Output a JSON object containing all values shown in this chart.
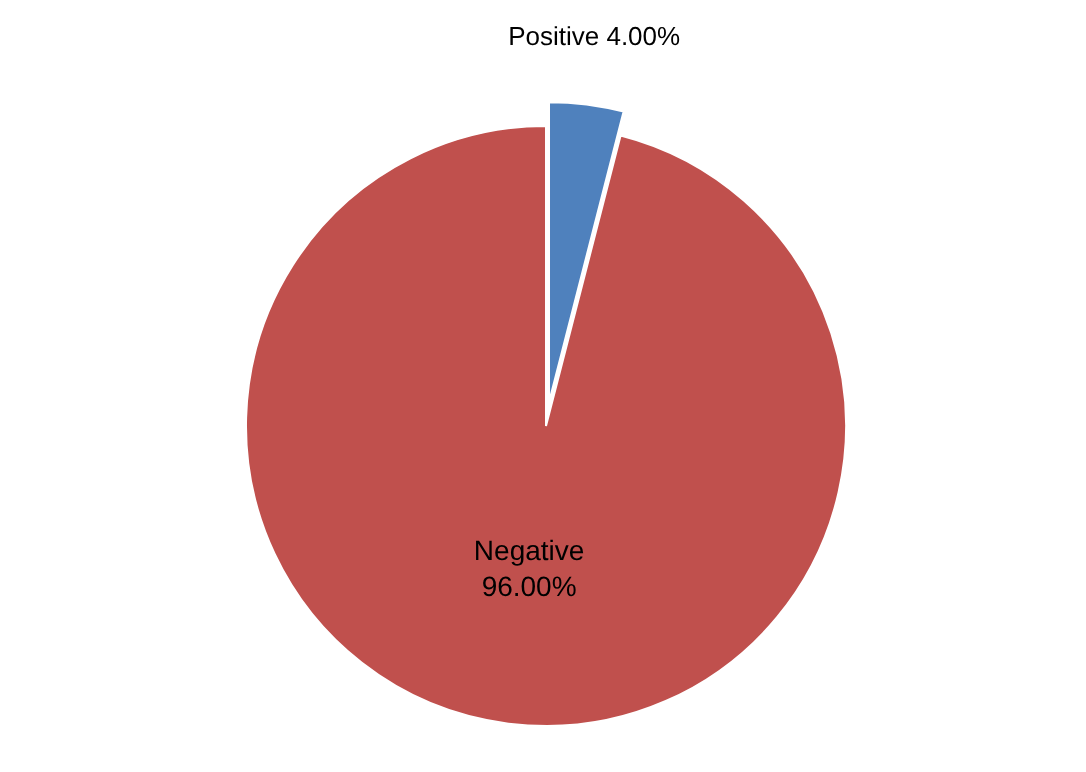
{
  "chart_data": {
    "type": "pie",
    "categories": [
      "Positive",
      "Negative"
    ],
    "values": [
      4,
      96
    ],
    "value_labels": [
      "4.00%",
      "96.00%"
    ],
    "colors": [
      "#4f81bd",
      "#c0504d"
    ]
  }
}
